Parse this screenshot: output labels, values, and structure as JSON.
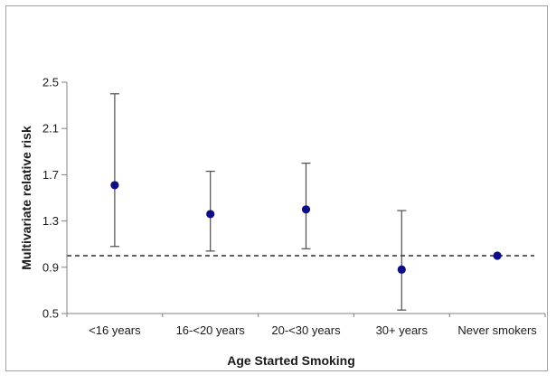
{
  "chart_data": {
    "type": "scatter",
    "title": "",
    "xlabel": "Age Started Smoking",
    "ylabel": "Multivariate relative risk",
    "categories": [
      "<16 years",
      "16-<20 years",
      "20-<30 years",
      "30+ years",
      "Never smokers"
    ],
    "series": [
      {
        "name": "Multivariate relative risk",
        "values": [
          1.61,
          1.36,
          1.4,
          0.88,
          1.0
        ],
        "ci_low": [
          1.08,
          1.04,
          1.06,
          0.53,
          null
        ],
        "ci_high": [
          2.4,
          1.73,
          1.8,
          1.39,
          null
        ]
      }
    ],
    "reference_line": 1.0,
    "ylim": [
      0.5,
      2.5
    ],
    "yticks": [
      0.5,
      0.9,
      1.3,
      1.7,
      2.1,
      2.5
    ],
    "ytick_decimals": 1,
    "grid": false,
    "legend": false,
    "colors": {
      "marker": "#0d0d86",
      "error_bar": "#4d4d4d",
      "axis": "#808080",
      "reference_line": "#000000",
      "text": "#1a1a1a",
      "border": "#a3a3a3",
      "background": "#ffffff"
    }
  }
}
